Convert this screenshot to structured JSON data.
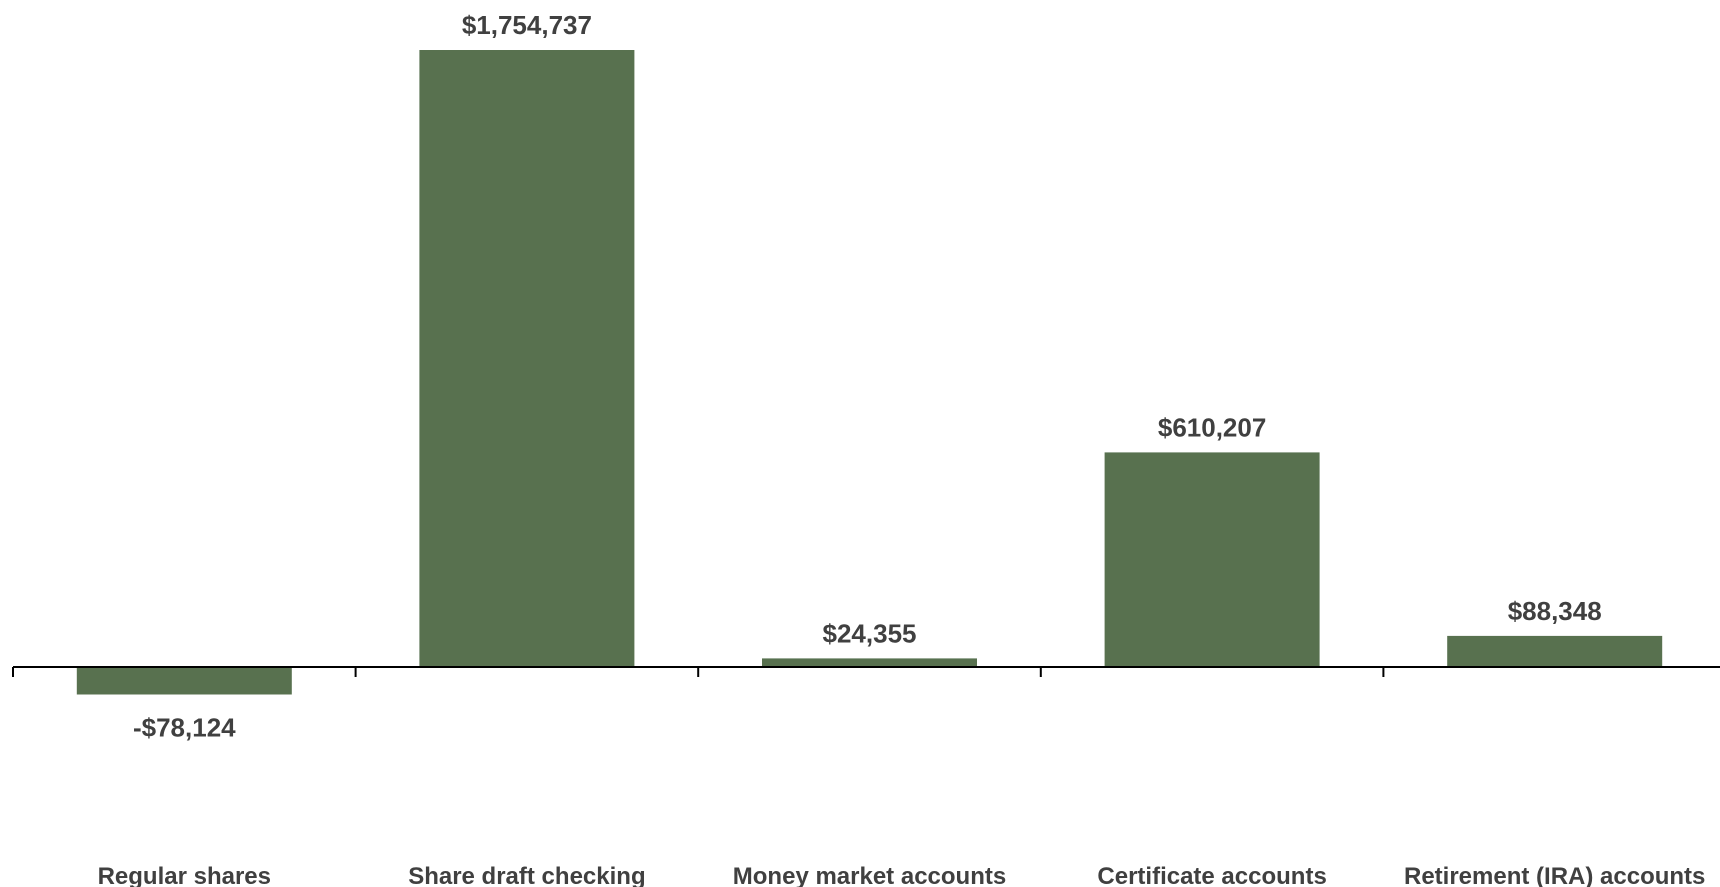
{
  "chart_data": {
    "type": "bar",
    "title": "",
    "xlabel": "",
    "ylabel": "",
    "categories": [
      "Regular shares",
      "Share draft checking",
      "Money market accounts",
      "Certificate accounts",
      "Retirement (IRA) accounts"
    ],
    "values": [
      -78124,
      1754737,
      24355,
      610207,
      88348
    ],
    "data_labels": [
      "-$78,124",
      "$1,754,737",
      "$24,355",
      "$610,207",
      "$88,348"
    ],
    "ylim": [
      -600000,
      1900000
    ],
    "grid": false,
    "legend": "none",
    "bar_color": "#58714F",
    "axis_color": "#000000",
    "label_color": "#404040"
  }
}
